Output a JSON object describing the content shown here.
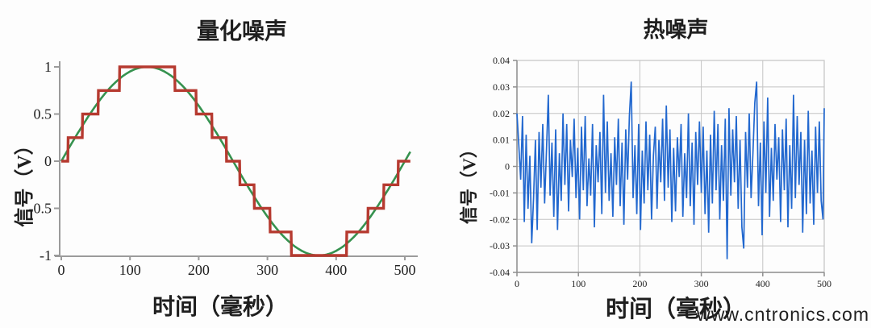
{
  "watermark": {
    "text": "www.cntronics.com",
    "color": "#b7dfae"
  },
  "colors": {
    "sine_green": "#36924f",
    "quantized_red": "#b63a30",
    "noise_blue": "#2268cf",
    "axis_gray": "#9b9b9b",
    "grid_gray": "#c4c4c4",
    "frame_gray": "#8f8f8f",
    "text_dark": "#1f1f1f"
  },
  "chart_data": [
    {
      "type": "line",
      "title": "量化噪声",
      "xlabel": "时间（毫秒）",
      "ylabel": "信号（V）",
      "xlim": [
        0,
        510
      ],
      "ylim": [
        -1,
        1
      ],
      "xticks": [
        0,
        100,
        200,
        300,
        400,
        500
      ],
      "xtick_labels": [
        "0",
        "100",
        "200",
        "300",
        "400",
        "500"
      ],
      "yticks": [
        1,
        0.5,
        0,
        -0.5,
        -1
      ],
      "ytick_labels": [
        "1",
        "0.5",
        "0",
        "-0.5",
        "-1"
      ],
      "grid": false,
      "legend": "none",
      "series": [
        {
          "name": "original-sine-signal",
          "kind": "sine",
          "color": "#36924f",
          "amplitude": 1,
          "period_ms": 500,
          "phase_deg": 0,
          "t_start_ms": 0,
          "t_end_ms": 508
        },
        {
          "name": "quantized-staircase-signal",
          "kind": "quantized-sine",
          "color": "#b63a30",
          "amplitude": 1,
          "period_ms": 500,
          "quantization_step_v": 0.25,
          "t_start_ms": 0,
          "t_end_ms": 508
        }
      ]
    },
    {
      "type": "line",
      "title": "热噪声",
      "xlabel": "时间（毫秒）",
      "ylabel": "信号（V）",
      "xlim": [
        0,
        500
      ],
      "ylim": [
        -0.04,
        0.04
      ],
      "xticks": [
        0,
        100,
        200,
        300,
        400,
        500
      ],
      "xtick_labels": [
        "0",
        "100",
        "200",
        "300",
        "400",
        "500"
      ],
      "yticks": [
        0.04,
        0.03,
        0.02,
        0.01,
        0,
        -0.01,
        -0.02,
        -0.03,
        -0.04
      ],
      "ytick_labels": [
        "0.04",
        "0.03",
        "0.02",
        "0.01",
        "0",
        "-0.01",
        "-0.02",
        "-0.03",
        "-0.04"
      ],
      "grid": true,
      "legend": "none",
      "series": [
        {
          "name": "thermal-noise-signal",
          "kind": "samples",
          "color": "#2268cf",
          "x_step_ms": 3,
          "values": [
            0.02,
            0.008,
            -0.005,
            0.019,
            -0.021,
            0.012,
            -0.016,
            0.004,
            -0.029,
            -0.012,
            0.01,
            -0.024,
            0.013,
            -0.008,
            0.016,
            -0.014,
            0.006,
            0.027,
            -0.011,
            0.009,
            -0.019,
            0.014,
            -0.024,
            0.005,
            -0.013,
            0.02,
            -0.007,
            0.016,
            -0.017,
            0.01,
            -0.004,
            0.018,
            -0.012,
            0.007,
            -0.02,
            0.015,
            -0.009,
            0.019,
            -0.015,
            0.003,
            -0.011,
            0.016,
            -0.023,
            0.008,
            -0.006,
            0.013,
            -0.018,
            0.027,
            -0.01,
            0.017,
            -0.013,
            0.005,
            -0.019,
            0.011,
            -0.007,
            0.018,
            -0.015,
            0.009,
            -0.022,
            0.014,
            -0.005,
            0.019,
            0.032,
            -0.012,
            0.008,
            -0.018,
            0.016,
            -0.024,
            0.006,
            -0.014,
            0.017,
            -0.009,
            0.012,
            -0.02,
            0.004,
            0.015,
            -0.016,
            0.01,
            -0.006,
            0.018,
            -0.013,
            0.023,
            -0.008,
            0.014,
            -0.021,
            0.007,
            -0.017,
            0.011,
            -0.004,
            0.016,
            -0.019,
            0.005,
            -0.012,
            0.02,
            -0.015,
            0.009,
            -0.022,
            0.013,
            -0.007,
            0.017,
            -0.01,
            0.015,
            -0.018,
            0.006,
            -0.025,
            0.012,
            -0.014,
            0.021,
            -0.009,
            0.016,
            -0.02,
            0.008,
            -0.013,
            0.018,
            -0.035,
            0.022,
            -0.011,
            0.014,
            -0.006,
            0.019,
            -0.016,
            0.01,
            -0.023,
            -0.031,
            0.013,
            -0.008,
            0.02,
            -0.012,
            0.005,
            0.024,
            0.032,
            -0.015,
            0.009,
            -0.026,
            0.017,
            -0.01,
            0.026,
            -0.019,
            0.007,
            -0.013,
            0.016,
            -0.005,
            0.011,
            -0.021,
            0.014,
            -0.009,
            0.018,
            -0.023,
            0.008,
            -0.016,
            0.027,
            -0.012,
            0.019,
            -0.007,
            0.013,
            -0.025,
            0.01,
            -0.018,
            0.021,
            -0.014,
            0.006,
            -0.022,
            0.015,
            -0.01,
            0.017,
            -0.013,
            -0.02,
            0.022
          ]
        }
      ]
    }
  ]
}
